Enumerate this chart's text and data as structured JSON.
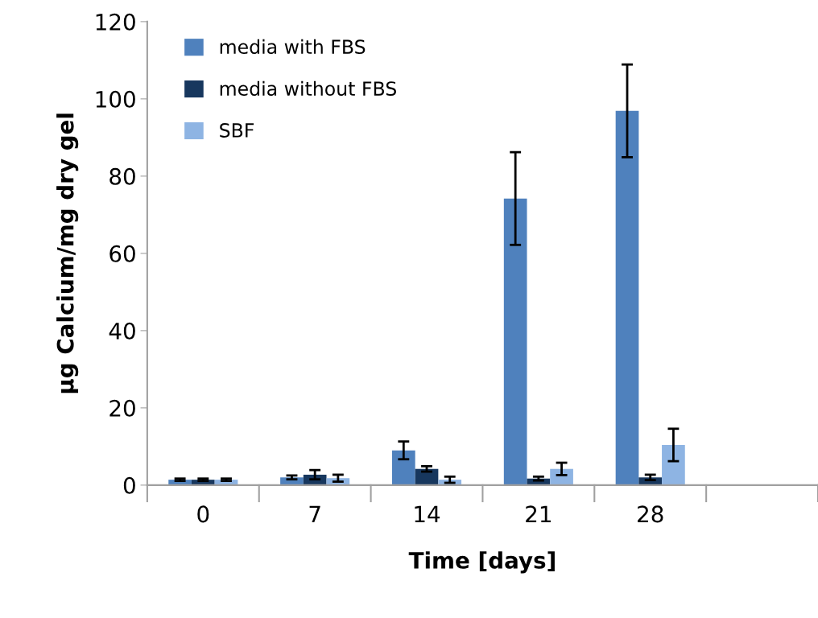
{
  "chart_data": {
    "type": "bar",
    "xlabel": "Time [days]",
    "ylabel": "µg Calcium/mg dry gel",
    "categories": [
      "0",
      "7",
      "14",
      "21",
      "28",
      null
    ],
    "series": [
      {
        "name": "media with FBS",
        "color": "#4f81bd",
        "values": [
          1.4,
          2.0,
          9.0,
          74.2,
          96.9,
          null
        ],
        "errors": [
          0.3,
          0.5,
          2.3,
          12,
          12,
          null
        ]
      },
      {
        "name": "media without FBS",
        "color": "#17375e",
        "values": [
          1.4,
          2.7,
          4.2,
          1.7,
          2.0,
          null
        ],
        "errors": [
          0.3,
          1.2,
          0.7,
          0.5,
          0.7,
          null
        ]
      },
      {
        "name": "SBF",
        "color": "#8eb4e3",
        "values": [
          1.4,
          1.8,
          1.4,
          4.2,
          10.4,
          null
        ],
        "errors": [
          0.3,
          0.9,
          0.8,
          1.6,
          4.2,
          null
        ]
      }
    ],
    "ylim": [
      0,
      120
    ],
    "yticks": [
      0,
      20,
      40,
      60,
      80,
      100,
      120
    ],
    "grid": false,
    "legend": "top left"
  }
}
